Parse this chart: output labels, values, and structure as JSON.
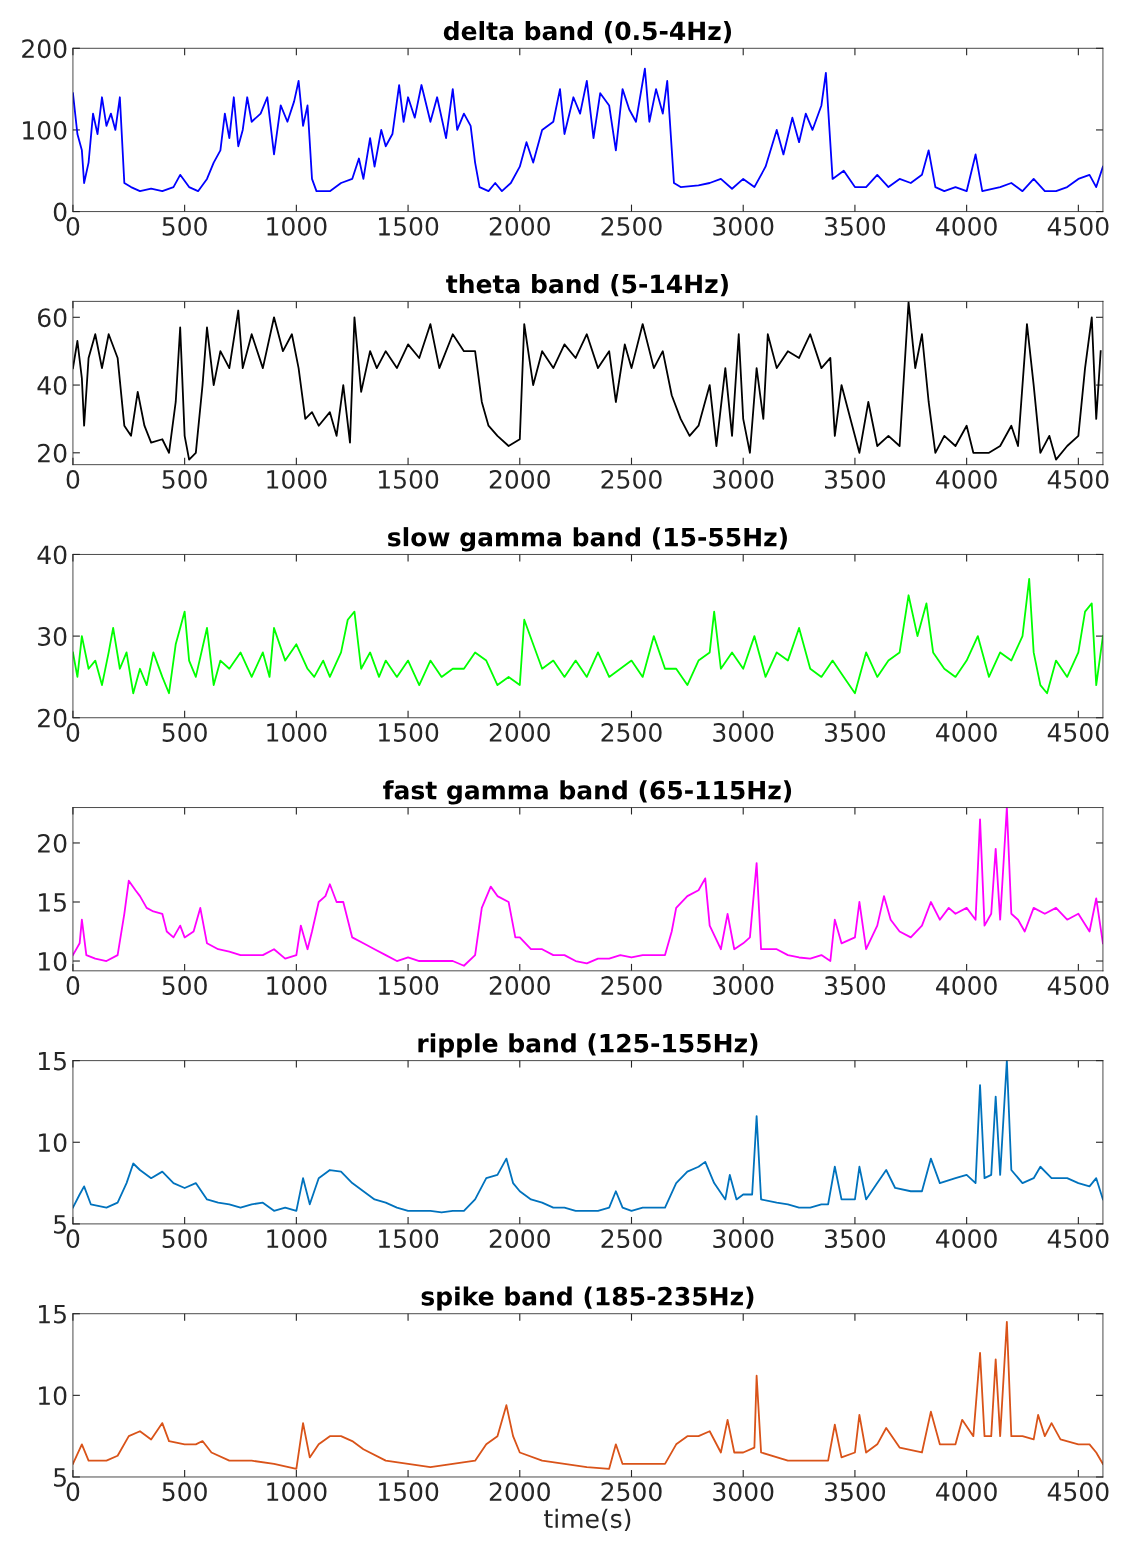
{
  "chart_data": [
    {
      "type": "line",
      "title": "delta band (0.5-4Hz)",
      "color": "#0000ff",
      "xlim": [
        0,
        4610
      ],
      "xticks": [
        0,
        500,
        1000,
        1500,
        2000,
        2500,
        3000,
        3500,
        4000,
        4500
      ],
      "ylim": [
        0,
        200
      ],
      "yticks": [
        0,
        100,
        200
      ],
      "x": [
        0,
        20,
        40,
        50,
        70,
        90,
        110,
        130,
        150,
        170,
        190,
        210,
        230,
        260,
        300,
        350,
        400,
        450,
        480,
        520,
        560,
        600,
        630,
        660,
        680,
        700,
        720,
        740,
        760,
        780,
        800,
        840,
        870,
        900,
        930,
        960,
        990,
        1010,
        1030,
        1050,
        1070,
        1090,
        1150,
        1200,
        1250,
        1280,
        1300,
        1330,
        1350,
        1380,
        1400,
        1430,
        1460,
        1480,
        1500,
        1530,
        1560,
        1600,
        1630,
        1670,
        1700,
        1720,
        1750,
        1780,
        1800,
        1820,
        1860,
        1890,
        1920,
        1960,
        2000,
        2030,
        2060,
        2100,
        2150,
        2180,
        2200,
        2240,
        2270,
        2300,
        2330,
        2360,
        2400,
        2430,
        2460,
        2490,
        2520,
        2560,
        2580,
        2610,
        2640,
        2660,
        2690,
        2720,
        2800,
        2850,
        2900,
        2950,
        3000,
        3050,
        3100,
        3150,
        3180,
        3220,
        3250,
        3280,
        3310,
        3350,
        3370,
        3400,
        3450,
        3500,
        3550,
        3600,
        3650,
        3700,
        3750,
        3800,
        3830,
        3860,
        3900,
        3950,
        4000,
        4040,
        4070,
        4150,
        4200,
        4250,
        4300,
        4350,
        4400,
        4450,
        4500,
        4550,
        4580,
        4610
      ],
      "values": [
        145,
        95,
        75,
        35,
        60,
        120,
        95,
        140,
        105,
        120,
        100,
        140,
        35,
        30,
        25,
        28,
        25,
        30,
        45,
        30,
        25,
        40,
        60,
        75,
        120,
        90,
        140,
        80,
        100,
        140,
        110,
        120,
        140,
        70,
        130,
        110,
        135,
        160,
        105,
        130,
        40,
        25,
        25,
        35,
        40,
        65,
        40,
        90,
        55,
        100,
        80,
        95,
        155,
        110,
        140,
        115,
        155,
        110,
        140,
        90,
        150,
        100,
        120,
        105,
        60,
        30,
        25,
        35,
        25,
        35,
        55,
        85,
        60,
        100,
        110,
        150,
        95,
        140,
        120,
        160,
        90,
        145,
        130,
        75,
        150,
        125,
        110,
        175,
        110,
        150,
        120,
        160,
        35,
        30,
        32,
        35,
        40,
        28,
        40,
        30,
        55,
        100,
        70,
        115,
        85,
        120,
        100,
        130,
        170,
        40,
        50,
        30,
        30,
        45,
        30,
        40,
        35,
        45,
        75,
        30,
        25,
        30,
        25,
        70,
        25,
        30,
        35,
        25,
        40,
        25,
        25,
        30,
        40,
        45,
        30,
        55
      ]
    },
    {
      "type": "line",
      "title": "theta band (5-14Hz)",
      "color": "#000000",
      "xlim": [
        0,
        4610
      ],
      "xticks": [
        0,
        500,
        1000,
        1500,
        2000,
        2500,
        3000,
        3500,
        4000,
        4500
      ],
      "ylim": [
        16.5,
        64.7
      ],
      "yticks": [
        20,
        40,
        60
      ],
      "x": [
        0,
        20,
        40,
        50,
        70,
        100,
        130,
        160,
        200,
        230,
        260,
        290,
        320,
        350,
        400,
        430,
        460,
        480,
        500,
        520,
        550,
        580,
        600,
        630,
        660,
        700,
        740,
        760,
        800,
        850,
        900,
        940,
        980,
        1010,
        1040,
        1070,
        1100,
        1150,
        1180,
        1210,
        1240,
        1260,
        1290,
        1330,
        1360,
        1400,
        1450,
        1500,
        1550,
        1600,
        1640,
        1700,
        1750,
        1800,
        1830,
        1860,
        1900,
        1950,
        2000,
        2020,
        2060,
        2100,
        2150,
        2200,
        2250,
        2300,
        2350,
        2400,
        2430,
        2470,
        2500,
        2550,
        2600,
        2640,
        2680,
        2720,
        2760,
        2800,
        2850,
        2880,
        2920,
        2950,
        2980,
        3000,
        3030,
        3060,
        3090,
        3110,
        3150,
        3200,
        3250,
        3300,
        3350,
        3390,
        3410,
        3440,
        3480,
        3520,
        3560,
        3600,
        3650,
        3700,
        3740,
        3770,
        3800,
        3830,
        3860,
        3900,
        3950,
        4000,
        4030,
        4100,
        4150,
        4200,
        4230,
        4270,
        4300,
        4330,
        4370,
        4400,
        4450,
        4500,
        4530,
        4560,
        4580,
        4600
      ],
      "values": [
        45,
        53,
        42,
        28,
        48,
        55,
        45,
        55,
        48,
        28,
        25,
        38,
        28,
        23,
        24,
        20,
        35,
        57,
        25,
        18,
        20,
        40,
        57,
        40,
        50,
        45,
        62,
        45,
        55,
        45,
        60,
        50,
        55,
        45,
        30,
        32,
        28,
        32,
        25,
        40,
        23,
        60,
        38,
        50,
        45,
        50,
        45,
        52,
        48,
        58,
        45,
        55,
        50,
        50,
        35,
        28,
        25,
        22,
        24,
        58,
        40,
        50,
        45,
        52,
        48,
        55,
        45,
        50,
        35,
        52,
        45,
        58,
        45,
        50,
        37,
        30,
        25,
        28,
        40,
        22,
        45,
        25,
        55,
        30,
        20,
        45,
        30,
        55,
        45,
        50,
        48,
        55,
        45,
        48,
        25,
        40,
        30,
        20,
        35,
        22,
        25,
        22,
        64.5,
        45,
        55,
        35,
        20,
        25,
        22,
        28,
        20,
        20,
        22,
        28,
        22,
        58,
        40,
        20,
        25,
        18,
        22,
        25,
        45,
        60,
        30,
        50
      ]
    },
    {
      "type": "line",
      "title": "slow gamma band (15-55Hz)",
      "color": "#00ff00",
      "xlim": [
        0,
        4610
      ],
      "xticks": [
        0,
        500,
        1000,
        1500,
        2000,
        2500,
        3000,
        3500,
        4000,
        4500
      ],
      "ylim": [
        20,
        40
      ],
      "yticks": [
        20,
        30,
        40
      ],
      "x": [
        0,
        20,
        40,
        70,
        100,
        130,
        160,
        180,
        210,
        240,
        270,
        300,
        330,
        360,
        400,
        430,
        460,
        480,
        500,
        520,
        550,
        600,
        630,
        660,
        700,
        750,
        800,
        850,
        880,
        900,
        950,
        1000,
        1050,
        1080,
        1120,
        1150,
        1200,
        1230,
        1260,
        1290,
        1330,
        1370,
        1400,
        1450,
        1500,
        1550,
        1600,
        1650,
        1700,
        1750,
        1800,
        1850,
        1900,
        1950,
        2000,
        2020,
        2060,
        2100,
        2150,
        2200,
        2250,
        2300,
        2350,
        2400,
        2450,
        2500,
        2550,
        2600,
        2650,
        2700,
        2750,
        2800,
        2850,
        2870,
        2900,
        2950,
        3000,
        3050,
        3100,
        3150,
        3200,
        3250,
        3300,
        3350,
        3400,
        3450,
        3500,
        3550,
        3600,
        3650,
        3700,
        3740,
        3780,
        3820,
        3850,
        3900,
        3950,
        4000,
        4050,
        4100,
        4150,
        4200,
        4250,
        4280,
        4300,
        4330,
        4360,
        4400,
        4450,
        4500,
        4530,
        4560,
        4580,
        4610
      ],
      "values": [
        28,
        25,
        30,
        26,
        27,
        24,
        28,
        31,
        26,
        28,
        23,
        26,
        24,
        28,
        25,
        23,
        29,
        31,
        33,
        27,
        25,
        31,
        24,
        27,
        26,
        28,
        25,
        28,
        25,
        31,
        27,
        29,
        26,
        25,
        27,
        25,
        28,
        32,
        33,
        26,
        28,
        25,
        27,
        25,
        27,
        24,
        27,
        25,
        26,
        26,
        28,
        27,
        24,
        25,
        24,
        32,
        29,
        26,
        27,
        25,
        27,
        25,
        28,
        25,
        26,
        27,
        25,
        30,
        26,
        26,
        24,
        27,
        28,
        33,
        26,
        28,
        26,
        30,
        25,
        28,
        27,
        31,
        26,
        25,
        27,
        25,
        23,
        28,
        25,
        27,
        28,
        35,
        30,
        34,
        28,
        26,
        25,
        27,
        30,
        25,
        28,
        27,
        30,
        37,
        28,
        24,
        23,
        27,
        25,
        28,
        33,
        34,
        24,
        30
      ]
    },
    {
      "type": "line",
      "title": "fast gamma band (65-115Hz)",
      "color": "#ff00ff",
      "xlim": [
        0,
        4610
      ],
      "xticks": [
        0,
        500,
        1000,
        1500,
        2000,
        2500,
        3000,
        3500,
        4000,
        4500
      ],
      "ylim": [
        9.17,
        23
      ],
      "yticks": [
        10,
        15,
        20
      ],
      "x": [
        0,
        30,
        40,
        60,
        100,
        150,
        200,
        230,
        250,
        280,
        300,
        330,
        360,
        400,
        420,
        450,
        480,
        500,
        540,
        570,
        600,
        650,
        700,
        750,
        800,
        850,
        900,
        950,
        1000,
        1020,
        1050,
        1070,
        1100,
        1130,
        1150,
        1180,
        1210,
        1250,
        1300,
        1350,
        1400,
        1450,
        1500,
        1550,
        1600,
        1650,
        1700,
        1750,
        1800,
        1830,
        1870,
        1900,
        1950,
        1980,
        2000,
        2050,
        2100,
        2150,
        2200,
        2250,
        2300,
        2350,
        2400,
        2450,
        2500,
        2550,
        2600,
        2650,
        2680,
        2700,
        2750,
        2800,
        2830,
        2850,
        2900,
        2930,
        2960,
        3000,
        3030,
        3060,
        3080,
        3100,
        3150,
        3200,
        3250,
        3300,
        3350,
        3390,
        3410,
        3440,
        3500,
        3520,
        3550,
        3600,
        3630,
        3660,
        3700,
        3750,
        3800,
        3840,
        3880,
        3920,
        3950,
        4000,
        4040,
        4060,
        4080,
        4110,
        4130,
        4150,
        4180,
        4200,
        4230,
        4260,
        4300,
        4350,
        4400,
        4450,
        4500,
        4550,
        4580,
        4610
      ],
      "values": [
        10.5,
        11.5,
        13.5,
        10.5,
        10.2,
        10,
        10.5,
        14,
        16.8,
        16,
        15.5,
        14.5,
        14.2,
        14,
        12.5,
        12,
        13,
        12,
        12.5,
        14.5,
        11.5,
        11,
        10.8,
        10.5,
        10.5,
        10.5,
        11,
        10.2,
        10.5,
        13,
        11,
        12.5,
        15,
        15.5,
        16.5,
        15,
        15,
        12,
        11.5,
        11,
        10.5,
        10,
        10.3,
        10,
        10,
        10,
        10,
        9.6,
        10.5,
        14.5,
        16.3,
        15.5,
        15,
        12,
        12,
        11,
        11,
        10.5,
        10.5,
        10,
        9.8,
        10.2,
        10.2,
        10.5,
        10.3,
        10.5,
        10.5,
        10.5,
        12.5,
        14.5,
        15.5,
        16,
        17,
        13,
        11,
        14,
        11,
        11.5,
        12,
        18.3,
        11,
        11,
        11,
        10.5,
        10.3,
        10.2,
        10.5,
        10,
        13.5,
        11.5,
        12,
        15,
        11,
        13,
        15.5,
        13.5,
        12.5,
        12,
        13,
        15,
        13.5,
        14.5,
        14,
        14.5,
        13.5,
        22,
        13,
        14,
        19.5,
        13.5,
        23,
        14,
        13.5,
        12.5,
        14.5,
        14,
        14.5,
        13.5,
        14,
        12.5,
        15.3,
        11.5
      ]
    },
    {
      "type": "line",
      "title": "ripple band (125-155Hz)",
      "color": "#0072bd",
      "xlim": [
        0,
        4610
      ],
      "xticks": [
        0,
        500,
        1000,
        1500,
        2000,
        2500,
        3000,
        3500,
        4000,
        4500
      ],
      "ylim": [
        5,
        15
      ],
      "yticks": [
        5,
        10,
        15
      ],
      "x": [
        0,
        30,
        50,
        80,
        150,
        200,
        240,
        270,
        300,
        350,
        400,
        450,
        500,
        550,
        600,
        650,
        700,
        750,
        800,
        850,
        900,
        950,
        1000,
        1030,
        1060,
        1100,
        1150,
        1200,
        1250,
        1300,
        1350,
        1400,
        1450,
        1500,
        1550,
        1600,
        1650,
        1700,
        1750,
        1800,
        1850,
        1900,
        1940,
        1970,
        2000,
        2050,
        2100,
        2150,
        2200,
        2250,
        2300,
        2350,
        2400,
        2430,
        2460,
        2500,
        2550,
        2600,
        2650,
        2700,
        2750,
        2800,
        2830,
        2870,
        2920,
        2940,
        2970,
        3000,
        3040,
        3060,
        3080,
        3150,
        3200,
        3250,
        3300,
        3350,
        3380,
        3410,
        3440,
        3500,
        3520,
        3550,
        3600,
        3640,
        3680,
        3750,
        3800,
        3840,
        3880,
        3950,
        4000,
        4040,
        4060,
        4080,
        4110,
        4130,
        4150,
        4180,
        4200,
        4250,
        4300,
        4330,
        4380,
        4450,
        4500,
        4550,
        4580,
        4610
      ],
      "values": [
        6,
        6.8,
        7.3,
        6.2,
        6,
        6.3,
        7.5,
        8.7,
        8.3,
        7.8,
        8.2,
        7.5,
        7.2,
        7.5,
        6.5,
        6.3,
        6.2,
        6,
        6.2,
        6.3,
        5.8,
        6,
        5.8,
        7.8,
        6.2,
        7.8,
        8.3,
        8.2,
        7.5,
        7,
        6.5,
        6.3,
        6,
        5.8,
        5.8,
        5.8,
        5.7,
        5.8,
        5.8,
        6.5,
        7.8,
        8,
        9,
        7.5,
        7,
        6.5,
        6.3,
        6,
        6,
        5.8,
        5.8,
        5.8,
        6,
        7,
        6,
        5.8,
        6,
        6,
        6,
        7.5,
        8.2,
        8.5,
        8.8,
        7.5,
        6.5,
        8,
        6.5,
        6.8,
        6.8,
        11.6,
        6.5,
        6.3,
        6.2,
        6,
        6,
        6.2,
        6.2,
        8.5,
        6.5,
        6.5,
        8.5,
        6.5,
        7.5,
        8.3,
        7.2,
        7,
        7,
        9,
        7.5,
        7.8,
        8,
        7.5,
        13.5,
        7.8,
        8,
        12.8,
        8,
        15,
        8.3,
        7.5,
        7.8,
        8.5,
        7.8,
        7.8,
        7.5,
        7.3,
        7.8,
        6.5
      ]
    },
    {
      "type": "line",
      "title": "spike band (185-235Hz)",
      "xlabel": "time(s)",
      "color": "#d95319",
      "xlim": [
        0,
        4610
      ],
      "xticks": [
        0,
        500,
        1000,
        1500,
        2000,
        2500,
        3000,
        3500,
        4000,
        4500
      ],
      "ylim": [
        5,
        15
      ],
      "yticks": [
        5,
        10,
        15
      ],
      "x": [
        0,
        40,
        70,
        150,
        200,
        250,
        300,
        350,
        400,
        430,
        500,
        550,
        580,
        620,
        700,
        800,
        900,
        1000,
        1030,
        1060,
        1100,
        1150,
        1200,
        1250,
        1300,
        1400,
        1500,
        1600,
        1700,
        1800,
        1850,
        1900,
        1940,
        1970,
        2000,
        2100,
        2200,
        2300,
        2400,
        2430,
        2460,
        2550,
        2650,
        2700,
        2750,
        2800,
        2850,
        2900,
        2930,
        2960,
        3000,
        3050,
        3060,
        3080,
        3200,
        3300,
        3380,
        3410,
        3440,
        3500,
        3520,
        3550,
        3600,
        3640,
        3700,
        3800,
        3840,
        3880,
        3950,
        3980,
        4030,
        4060,
        4080,
        4110,
        4130,
        4150,
        4180,
        4200,
        4250,
        4300,
        4320,
        4350,
        4380,
        4420,
        4500,
        4550,
        4580,
        4610
      ],
      "values": [
        5.8,
        7,
        6,
        6,
        6.3,
        7.5,
        7.8,
        7.3,
        8.3,
        7.2,
        7,
        7,
        7.2,
        6.5,
        6,
        6,
        5.8,
        5.5,
        8.3,
        6.2,
        7,
        7.5,
        7.5,
        7.2,
        6.7,
        6,
        5.8,
        5.6,
        5.8,
        6,
        7,
        7.5,
        9.4,
        7.5,
        6.5,
        6,
        5.8,
        5.6,
        5.5,
        7,
        5.8,
        5.8,
        5.8,
        7,
        7.5,
        7.5,
        7.8,
        6.5,
        8.5,
        6.5,
        6.5,
        6.8,
        11.2,
        6.5,
        6,
        6,
        6,
        8.2,
        6.2,
        6.5,
        8.8,
        6.5,
        7,
        8,
        6.8,
        6.5,
        9,
        7,
        7,
        8.5,
        7.5,
        12.6,
        7.5,
        7.5,
        12.2,
        7.5,
        14.5,
        7.5,
        7.5,
        7.3,
        8.8,
        7.5,
        8.3,
        7.3,
        7,
        7,
        6.5,
        5.8
      ]
    }
  ]
}
